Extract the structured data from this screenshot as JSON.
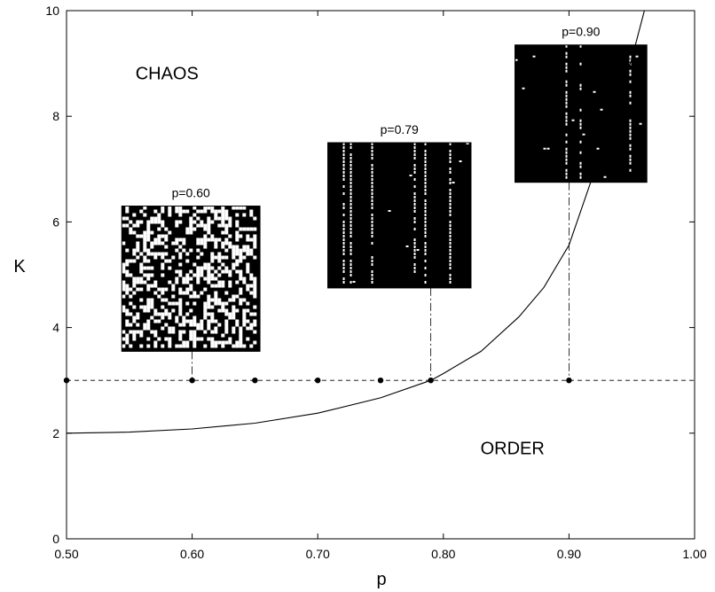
{
  "chart_data": {
    "type": "line",
    "title": "",
    "xlabel": "p",
    "ylabel": "K",
    "xlim": [
      0.5,
      1.0
    ],
    "ylim": [
      0,
      10
    ],
    "xticks": [
      {
        "value": 0.5,
        "label": "0.50"
      },
      {
        "value": 0.6,
        "label": "0.60"
      },
      {
        "value": 0.7,
        "label": "0.70"
      },
      {
        "value": 0.8,
        "label": "0.80"
      },
      {
        "value": 0.9,
        "label": "0.90"
      },
      {
        "value": 1.0,
        "label": "1.00"
      }
    ],
    "yticks": [
      {
        "value": 0,
        "label": "0"
      },
      {
        "value": 2,
        "label": "2"
      },
      {
        "value": 4,
        "label": "4"
      },
      {
        "value": 6,
        "label": "6"
      },
      {
        "value": 8,
        "label": "8"
      },
      {
        "value": 10,
        "label": "10"
      }
    ],
    "grid": false,
    "curve": {
      "style": "solid",
      "x": [
        0.5,
        0.55,
        0.6,
        0.65,
        0.7,
        0.75,
        0.79,
        0.8,
        0.83,
        0.86,
        0.88,
        0.9,
        0.92,
        0.94,
        0.95,
        0.96
      ],
      "y": [
        2.0,
        2.02,
        2.08,
        2.19,
        2.38,
        2.67,
        3.0,
        3.13,
        3.55,
        4.2,
        4.76,
        5.56,
        6.94,
        8.33,
        9.09,
        10.0
      ]
    },
    "reference_line": {
      "style": "dashed",
      "y": 3
    },
    "points": {
      "x": [
        0.5,
        0.6,
        0.65,
        0.7,
        0.75,
        0.79,
        0.9
      ],
      "y": [
        3,
        3,
        3,
        3,
        3,
        3,
        3
      ]
    },
    "region_labels": [
      {
        "text": "CHAOS",
        "x": 0.58,
        "y": 8.7
      },
      {
        "text": "ORDER",
        "x": 0.855,
        "y": 1.6
      }
    ],
    "insets": [
      {
        "label": "p=0.60",
        "p": 0.6,
        "x_from": 0.544,
        "x_to": 0.654,
        "y_from": 3.55,
        "y_to": 6.3,
        "pattern": "random"
      },
      {
        "label": "p=0.79",
        "p": 0.79,
        "x_from": 0.708,
        "x_to": 0.822,
        "y_from": 4.75,
        "y_to": 7.5,
        "pattern": "stripes"
      },
      {
        "label": "p=0.90",
        "p": 0.9,
        "x_from": 0.857,
        "x_to": 0.962,
        "y_from": 6.75,
        "y_to": 9.35,
        "pattern": "dense"
      }
    ]
  }
}
